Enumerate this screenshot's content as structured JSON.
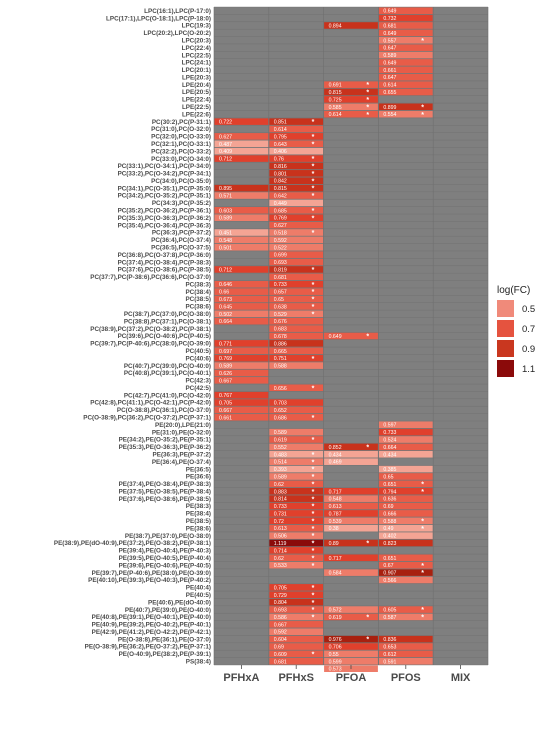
{
  "chart_data": {
    "type": "heatmap",
    "title": "",
    "xlabel": "",
    "ylabel": "",
    "grid": true,
    "legend_position": "right",
    "colors": {
      "panel": "#7f7f7f",
      "legend_swatches": [
        "#f08a7a",
        "#e5533f",
        "#c9371f",
        "#8b0a0a"
      ]
    },
    "legend": {
      "title": "log(FC)",
      "values": [
        "0.5",
        "0.7",
        "0.9",
        "1.1"
      ]
    },
    "columns": [
      "PFHxA",
      "PFHxS",
      "PFOA",
      "PFOS",
      "MIX"
    ],
    "rows": [
      "LPC(16:1),LPC(P-17:0)",
      "LPC(17:1),LPC(O-18:1),LPC(P-18:0)",
      "LPC(19:3)",
      "LPC(20:2),LPC(O-20:2)",
      "LPC(20:3)",
      "LPC(22:4)",
      "LPC(22:5)",
      "LPC(24:1)",
      "LPC(20:1)",
      "LPE(20:3)",
      "LPE(20:4)",
      "LPE(20:5)",
      "LPE(22:4)",
      "LPE(22:5)",
      "LPE(22:6)",
      "PC(30:2),PC(P-31:1)",
      "PC(31:0),PC(O-32:0)",
      "PC(32:0),PC(O-33:0)",
      "PC(32:1),PC(O-33:1)",
      "PC(32:2),PC(O-33:2)",
      "PC(33:0),PC(O-34:0)",
      "PC(33:1),PC(O-34:1),PC(P-34:0)",
      "PC(33:2),PC(O-34:2),PC(P-34:1)",
      "PC(34:0),PC(O-35:0)",
      "PC(34:1),PC(O-35:1),PC(P-35:0)",
      "PC(34:2),PC(O-35:2),PC(P-35:1)",
      "PC(34:3),PC(P-35:2)",
      "PC(35:2),PC(O-36:2),PC(P-36:1)",
      "PC(35:3),PC(O-36:3),PC(P-36:2)",
      "PC(35:4),PC(O-36:4),PC(P-36:3)",
      "PC(36:3),PC(P-37:2)",
      "PC(36:4),PC(O-37:4)",
      "PC(36:5),PC(O-37:5)",
      "PC(36:8),PC(O-37:8),PC(P-36:0)",
      "PC(37:4),PC(O-38:4),PC(P-38:3)",
      "PC(37:6),PC(O-38:6),PC(P-38:5)",
      "PC(37:7),PC(P-38:6),PC(36:6),PC(O-37:0)",
      "PC(38:3)",
      "PC(38:4)",
      "PC(38:5)",
      "PC(38:6)",
      "PC(38:7),PC(37:0),PC(O-38:0)",
      "PC(38:8),PC(37:1),PC(O-38:1)",
      "PC(38:9),PC(37:2),PC(O-38:2),PC(P-38:1)",
      "PC(39:6),PC(O-40:6),PC(P-40:5)",
      "PC(39:7),PC(P-40:6),PC(38:0),PC(O-39:0)",
      "PC(40:5)",
      "PC(40:6)",
      "PC(40:7),PC(39:0),PC(O-40:0)",
      "PC(40:8),PC(39:1),PC(O-40:1)",
      "PC(42:3)",
      "PC(42:5)",
      "PC(42:7),PC(41:0),PC(O-42:0)",
      "PC(42:8),PC(41:1),PC(O-42:1),PC(P-42:0)",
      "PC(O-38:8),PC(36:1),PC(O-37:0)",
      "PC(O-38:9),PC(36:2),PC(O-37:2),PC(P-37:1)",
      "PE(20:0),LPE(21:0)",
      "PE(31:0),PE(O-32:0)",
      "PE(34:2),PE(O-35:2),PE(P-35:1)",
      "PE(35:3),PE(O-36:3),PE(P-36:2)",
      "PE(36:3),PE(P-37:2)",
      "PE(36:4),PE(O-37:4)",
      "PE(36:5)",
      "PE(36:6)",
      "PE(37:4),PE(O-38:4),PE(P-38:3)",
      "PE(37:5),PE(O-38:5),PE(P-38:4)",
      "PE(37:6),PE(O-38:6),PE(P-38:5)",
      "PE(38:3)",
      "PE(38:4)",
      "PE(38:5)",
      "PE(38:6)",
      "PE(38:7),PE(37:0),PE(O-38:0)",
      "PE(38:9),PE(dO-40:9),PE(37:2),PE(O-38:2),PE(P-38:1)",
      "PE(39:4),PE(O-40:4),PE(P-40:3)",
      "PE(39:5),PE(O-40:5),PE(P-40:4)",
      "PE(39:6),PE(O-40:6),PE(P-40:5)",
      "PE(39:7),PE(P-40:6),PE(38:0),PE(O-39:0)",
      "PE(40:10),PE(39:3),PE(O-40:3),PE(P-40:2)",
      "PE(40:4)",
      "PE(40:5)",
      "PE(40:6),PE(dO-40:0)",
      "PE(40:7),PE(39:0),PE(O-40:0)",
      "PE(40:8),PE(39:1),PE(O-40:1),PE(P-40:0)",
      "PE(40:9),PE(39:2),PE(O-40:2),PE(P-40:1)",
      "PE(42:9),PE(41:2),PE(O-42:2),PE(P-42:1)",
      "PE(O-38:8),PE(36:1),PE(O-37:0)",
      "PE(O-38:9),PE(36:2),PE(O-37:2),PE(P-37:1)",
      "PE(O-40:9),PE(38:2),PE(P-39:1)",
      "PS(38:4)"
    ],
    "cells": [
      {
        "r": 0,
        "c": 3,
        "v": "0.649"
      },
      {
        "r": 1,
        "c": 3,
        "v": "0.732"
      },
      {
        "r": 2,
        "c": 2,
        "v": "0.894"
      },
      {
        "r": 2,
        "c": 3,
        "v": "0.681"
      },
      {
        "r": 3,
        "c": 3,
        "v": "0.649"
      },
      {
        "r": 4,
        "c": 3,
        "v": "0.557",
        "s": true
      },
      {
        "r": 5,
        "c": 3,
        "v": "0.647"
      },
      {
        "r": 6,
        "c": 3,
        "v": "0.589"
      },
      {
        "r": 7,
        "c": 3,
        "v": "0.649"
      },
      {
        "r": 8,
        "c": 3,
        "v": "0.661"
      },
      {
        "r": 9,
        "c": 3,
        "v": "0.647"
      },
      {
        "r": 10,
        "c": 2,
        "v": "0.691",
        "s": true
      },
      {
        "r": 10,
        "c": 3,
        "v": "0.614"
      },
      {
        "r": 11,
        "c": 2,
        "v": "0.815",
        "s": true
      },
      {
        "r": 11,
        "c": 3,
        "v": "0.655"
      },
      {
        "r": 12,
        "c": 2,
        "v": "0.725",
        "s": true
      },
      {
        "r": 13,
        "c": 2,
        "v": "0.585",
        "s": true
      },
      {
        "r": 13,
        "c": 3,
        "v": "0.899",
        "s": true
      },
      {
        "r": 14,
        "c": 2,
        "v": "0.614",
        "s": true
      },
      {
        "r": 14,
        "c": 3,
        "v": "0.554",
        "s": true
      },
      {
        "r": 15,
        "c": 0,
        "v": "0.722"
      },
      {
        "r": 15,
        "c": 1,
        "v": "0.851",
        "s": true
      },
      {
        "r": 16,
        "c": 1,
        "v": "0.614"
      },
      {
        "r": 17,
        "c": 0,
        "v": "0.627"
      },
      {
        "r": 17,
        "c": 1,
        "v": "0.795",
        "s": true
      },
      {
        "r": 18,
        "c": 0,
        "v": "0.487"
      },
      {
        "r": 18,
        "c": 1,
        "v": "0.643",
        "s": true
      },
      {
        "r": 19,
        "c": 0,
        "v": "0.409"
      },
      {
        "r": 19,
        "c": 1,
        "v": "0.406"
      },
      {
        "r": 20,
        "c": 0,
        "v": "0.712"
      },
      {
        "r": 20,
        "c": 1,
        "v": "0.76",
        "s": true
      },
      {
        "r": 21,
        "c": 1,
        "v": "0.816",
        "s": true
      },
      {
        "r": 22,
        "c": 1,
        "v": "0.801",
        "s": true
      },
      {
        "r": 23,
        "c": 1,
        "v": "0.842",
        "s": true
      },
      {
        "r": 24,
        "c": 0,
        "v": "0.895"
      },
      {
        "r": 24,
        "c": 1,
        "v": "0.815",
        "s": true
      },
      {
        "r": 25,
        "c": 0,
        "v": "0.571"
      },
      {
        "r": 25,
        "c": 1,
        "v": "0.642",
        "s": true
      },
      {
        "r": 26,
        "c": 1,
        "v": "0.449"
      },
      {
        "r": 27,
        "c": 0,
        "v": "0.603"
      },
      {
        "r": 27,
        "c": 1,
        "v": "0.685",
        "s": true
      },
      {
        "r": 28,
        "c": 0,
        "v": "0.589"
      },
      {
        "r": 28,
        "c": 1,
        "v": "0.769",
        "s": true
      },
      {
        "r": 29,
        "c": 1,
        "v": "0.627"
      },
      {
        "r": 30,
        "c": 0,
        "v": "0.451"
      },
      {
        "r": 30,
        "c": 1,
        "v": "0.518",
        "s": true
      },
      {
        "r": 31,
        "c": 0,
        "v": "0.548"
      },
      {
        "r": 31,
        "c": 1,
        "v": "0.592"
      },
      {
        "r": 32,
        "c": 0,
        "v": "0.501"
      },
      {
        "r": 32,
        "c": 1,
        "v": "0.522"
      },
      {
        "r": 33,
        "c": 1,
        "v": "0.699"
      },
      {
        "r": 34,
        "c": 1,
        "v": "0.693"
      },
      {
        "r": 35,
        "c": 0,
        "v": "0.712"
      },
      {
        "r": 35,
        "c": 1,
        "v": "0.819",
        "s": true
      },
      {
        "r": 36,
        "c": 1,
        "v": "0.681"
      },
      {
        "r": 37,
        "c": 0,
        "v": "0.646"
      },
      {
        "r": 37,
        "c": 1,
        "v": "0.733",
        "s": true
      },
      {
        "r": 38,
        "c": 0,
        "v": "0.66"
      },
      {
        "r": 38,
        "c": 1,
        "v": "0.657",
        "s": true
      },
      {
        "r": 39,
        "c": 0,
        "v": "0.673"
      },
      {
        "r": 39,
        "c": 1,
        "v": "0.65",
        "s": true
      },
      {
        "r": 40,
        "c": 0,
        "v": "0.645"
      },
      {
        "r": 40,
        "c": 1,
        "v": "0.638",
        "s": true
      },
      {
        "r": 41,
        "c": 0,
        "v": "0.502"
      },
      {
        "r": 41,
        "c": 1,
        "v": "0.529",
        "s": true
      },
      {
        "r": 42,
        "c": 0,
        "v": "0.664"
      },
      {
        "r": 42,
        "c": 1,
        "v": "0.676"
      },
      {
        "r": 43,
        "c": 1,
        "v": "0.683"
      },
      {
        "r": 44,
        "c": 1,
        "v": "0.678"
      },
      {
        "r": 44,
        "c": 2,
        "v": "0.649",
        "s": true
      },
      {
        "r": 45,
        "c": 0,
        "v": "0.771"
      },
      {
        "r": 45,
        "c": 1,
        "v": "0.886"
      },
      {
        "r": 46,
        "c": 0,
        "v": "0.697"
      },
      {
        "r": 46,
        "c": 1,
        "v": "0.665"
      },
      {
        "r": 47,
        "c": 0,
        "v": "0.769"
      },
      {
        "r": 47,
        "c": 1,
        "v": "0.751",
        "s": true
      },
      {
        "r": 48,
        "c": 0,
        "v": "0.589"
      },
      {
        "r": 48,
        "c": 1,
        "v": "0.588"
      },
      {
        "r": 49,
        "c": 0,
        "v": "0.626"
      },
      {
        "r": 50,
        "c": 0,
        "v": "0.667"
      },
      {
        "r": 51,
        "c": 1,
        "v": "0.656",
        "s": true
      },
      {
        "r": 52,
        "c": 0,
        "v": "0.767"
      },
      {
        "r": 53,
        "c": 0,
        "v": "0.705"
      },
      {
        "r": 53,
        "c": 1,
        "v": "0.703"
      },
      {
        "r": 54,
        "c": 0,
        "v": "0.667"
      },
      {
        "r": 54,
        "c": 1,
        "v": "0.652"
      },
      {
        "r": 55,
        "c": 0,
        "v": "0.661"
      },
      {
        "r": 55,
        "c": 1,
        "v": "0.686",
        "s": true
      },
      {
        "r": 56,
        "c": 3,
        "v": "0.597"
      },
      {
        "r": 57,
        "c": 1,
        "v": "0.589"
      },
      {
        "r": 57,
        "c": 3,
        "v": "0.733"
      },
      {
        "r": 58,
        "c": 1,
        "v": "0.619",
        "s": true
      },
      {
        "r": 58,
        "c": 3,
        "v": "0.524"
      },
      {
        "r": 59,
        "c": 1,
        "v": "0.552"
      },
      {
        "r": 59,
        "c": 2,
        "v": "0.852",
        "s": true
      },
      {
        "r": 59,
        "c": 3,
        "v": "0.664"
      },
      {
        "r": 60,
        "c": 1,
        "v": "0.483",
        "s": true
      },
      {
        "r": 60,
        "c": 2,
        "v": "0.434"
      },
      {
        "r": 60,
        "c": 3,
        "v": "0.434"
      },
      {
        "r": 61,
        "c": 1,
        "v": "0.514",
        "s": true
      },
      {
        "r": 61,
        "c": 2,
        "v": "0.469"
      },
      {
        "r": 62,
        "c": 1,
        "v": "0.393",
        "s": true
      },
      {
        "r": 62,
        "c": 3,
        "v": "0.385"
      },
      {
        "r": 63,
        "c": 1,
        "v": "0.589",
        "s": true
      },
      {
        "r": 63,
        "c": 3,
        "v": "0.65"
      },
      {
        "r": 64,
        "c": 1,
        "v": "0.62",
        "s": true
      },
      {
        "r": 64,
        "c": 3,
        "v": "0.651",
        "s": true
      },
      {
        "r": 65,
        "c": 1,
        "v": "0.883",
        "s": true
      },
      {
        "r": 65,
        "c": 2,
        "v": "0.717"
      },
      {
        "r": 65,
        "c": 3,
        "v": "0.794",
        "s": true
      },
      {
        "r": 66,
        "c": 1,
        "v": "0.814",
        "s": true
      },
      {
        "r": 66,
        "c": 2,
        "v": "0.548"
      },
      {
        "r": 66,
        "c": 3,
        "v": "0.636"
      },
      {
        "r": 67,
        "c": 1,
        "v": "0.733",
        "s": true
      },
      {
        "r": 67,
        "c": 2,
        "v": "0.613"
      },
      {
        "r": 67,
        "c": 3,
        "v": "0.69"
      },
      {
        "r": 68,
        "c": 1,
        "v": "0.731",
        "s": true
      },
      {
        "r": 68,
        "c": 2,
        "v": "0.787"
      },
      {
        "r": 68,
        "c": 3,
        "v": "0.666"
      },
      {
        "r": 69,
        "c": 1,
        "v": "0.72",
        "s": true
      },
      {
        "r": 69,
        "c": 2,
        "v": "0.539"
      },
      {
        "r": 69,
        "c": 3,
        "v": "0.588",
        "s": true
      },
      {
        "r": 70,
        "c": 1,
        "v": "0.613",
        "s": true
      },
      {
        "r": 70,
        "c": 2,
        "v": "0.38"
      },
      {
        "r": 70,
        "c": 3,
        "v": "0.49",
        "s": true
      },
      {
        "r": 71,
        "c": 1,
        "v": "0.506",
        "s": true
      },
      {
        "r": 71,
        "c": 3,
        "v": "0.402"
      },
      {
        "r": 72,
        "c": 1,
        "v": "1.119",
        "s": true
      },
      {
        "r": 72,
        "c": 2,
        "v": "0.89",
        "s": true
      },
      {
        "r": 72,
        "c": 3,
        "v": "0.823"
      },
      {
        "r": 73,
        "c": 1,
        "v": "0.714",
        "s": true
      },
      {
        "r": 74,
        "c": 1,
        "v": "0.62",
        "s": true
      },
      {
        "r": 74,
        "c": 2,
        "v": "0.717"
      },
      {
        "r": 74,
        "c": 3,
        "v": "0.651"
      },
      {
        "r": 75,
        "c": 1,
        "v": "0.533",
        "s": true
      },
      {
        "r": 75,
        "c": 3,
        "v": "0.67",
        "s": true
      },
      {
        "r": 76,
        "c": 2,
        "v": "0.584"
      },
      {
        "r": 76,
        "c": 3,
        "v": "0.907",
        "s": true
      },
      {
        "r": 77,
        "c": 3,
        "v": "0.566"
      },
      {
        "r": 78,
        "c": 1,
        "v": "0.705",
        "s": true
      },
      {
        "r": 79,
        "c": 1,
        "v": "0.729",
        "s": true
      },
      {
        "r": 80,
        "c": 1,
        "v": "0.804",
        "s": true
      },
      {
        "r": 81,
        "c": 1,
        "v": "0.693",
        "s": true
      },
      {
        "r": 81,
        "c": 2,
        "v": "0.572"
      },
      {
        "r": 81,
        "c": 3,
        "v": "0.605",
        "s": true
      },
      {
        "r": 82,
        "c": 1,
        "v": "0.586",
        "s": true
      },
      {
        "r": 82,
        "c": 2,
        "v": "0.619",
        "s": true
      },
      {
        "r": 82,
        "c": 3,
        "v": "0.587",
        "s": true
      },
      {
        "r": 83,
        "c": 1,
        "v": "0.667"
      },
      {
        "r": 84,
        "c": 1,
        "v": "0.592"
      },
      {
        "r": 85,
        "c": 1,
        "v": "0.604"
      },
      {
        "r": 85,
        "c": 2,
        "v": "0.976",
        "s": true
      },
      {
        "r": 85,
        "c": 3,
        "v": "0.836"
      },
      {
        "r": 86,
        "c": 1,
        "v": "0.69"
      },
      {
        "r": 86,
        "c": 2,
        "v": "0.706"
      },
      {
        "r": 86,
        "c": 3,
        "v": "0.653"
      },
      {
        "r": 87,
        "c": 1,
        "v": "0.609",
        "s": true
      },
      {
        "r": 87,
        "c": 2,
        "v": "0.55"
      },
      {
        "r": 87,
        "c": 3,
        "v": "0.612"
      },
      {
        "r": 88,
        "c": 1,
        "v": "0.681"
      },
      {
        "r": 88,
        "c": 2,
        "v": "0.599"
      },
      {
        "r": 88,
        "c": 3,
        "v": "0.591"
      },
      {
        "r": 89,
        "c": 2,
        "v": "0.573"
      }
    ]
  }
}
